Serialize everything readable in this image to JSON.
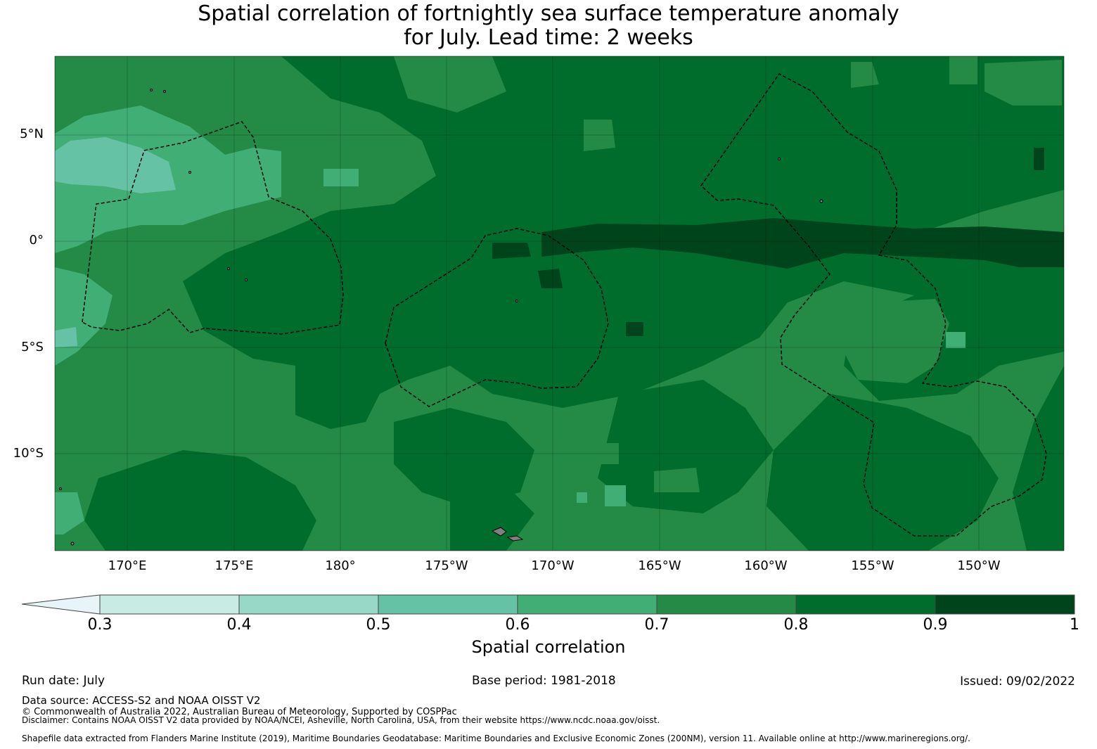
{
  "title": {
    "line1": "Spatial correlation of fortnightly sea surface temperature anomaly",
    "line2": "for July. Lead time: 2 weeks"
  },
  "map": {
    "lat_ticks": [
      "5°N",
      "0°",
      "5°S",
      "10°S"
    ],
    "lon_ticks": [
      "170°E",
      "175°E",
      "180°",
      "175°W",
      "170°W",
      "165°W",
      "160°W",
      "155°W",
      "150°W"
    ],
    "colors": {
      "c_0_3": "#e7f5f9",
      "c_3_4": "#c8ebe3",
      "c_4_5": "#98d8c6",
      "c_5_6": "#66c2a4",
      "c_6_7": "#41ae76",
      "c_7_8": "#238b45",
      "c_8_9": "#006d2c",
      "c_9_10": "#00441b",
      "land": "#808080"
    }
  },
  "colorbar": {
    "ticks": [
      "0.3",
      "0.4",
      "0.5",
      "0.6",
      "0.7",
      "0.8",
      "0.9",
      "1"
    ],
    "label": "Spatial correlation"
  },
  "footer": {
    "run_date": "Run date: July",
    "base_period": "Base period: 1981-2018",
    "issued": "Issued: 09/02/2022",
    "data_source": "Data source: ACCESS-S2 and NOAA OISST V2",
    "copyright": "© Commonwealth of Australia 2022, Australian Bureau of Meteorology, Supported by COSPPac",
    "disclaimer": "Disclaimer: Contains NOAA OISST V2 data provided by NOAA/NCEI, Asheville, North Carolina, USA, from their website https://www.ncdc.noaa.gov/oisst.",
    "shapefile": "Shapefile data extracted from Flanders Marine Institute (2019), Maritime Boundaries Geodatabase: Maritime Boundaries and Exclusive Economic Zones (200NM), version 11. Available online at http://www.marineregions.org/."
  }
}
